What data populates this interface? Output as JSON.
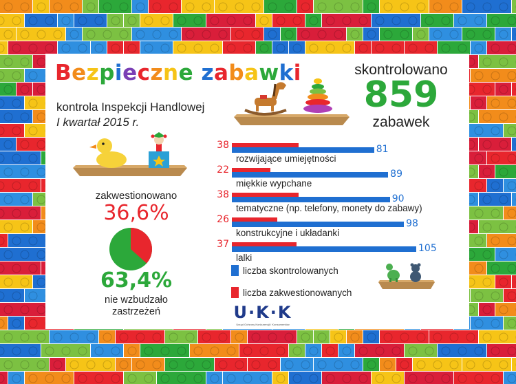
{
  "title_letters": [
    {
      "ch": "B",
      "color": "#e8262d"
    },
    {
      "ch": "e",
      "color": "#f28c1b"
    },
    {
      "ch": "z",
      "color": "#f6c417"
    },
    {
      "ch": "p",
      "color": "#2ca83a"
    },
    {
      "ch": "i",
      "color": "#1f6fd1"
    },
    {
      "ch": "e",
      "color": "#7a3fb5"
    },
    {
      "ch": "c",
      "color": "#e8262d"
    },
    {
      "ch": "z",
      "color": "#f28c1b"
    },
    {
      "ch": "n",
      "color": "#f6c417"
    },
    {
      "ch": "e",
      "color": "#2ca83a"
    },
    {
      "ch": " ",
      "color": "#000000"
    },
    {
      "ch": "z",
      "color": "#1f6fd1"
    },
    {
      "ch": "a",
      "color": "#e8262d"
    },
    {
      "ch": "b",
      "color": "#f28c1b"
    },
    {
      "ch": "a",
      "color": "#f6c417"
    },
    {
      "ch": "w",
      "color": "#2ca83a"
    },
    {
      "ch": "k",
      "color": "#1f6fd1"
    },
    {
      "ch": "i",
      "color": "#e8262d"
    }
  ],
  "subtitle_line1": "kontrola Inspekcji Handlowej",
  "subtitle_line2": "I kwartał 2015 r.",
  "checked": {
    "label_top": "skontrolowano",
    "number": "859",
    "label_bottom": "zabawek"
  },
  "pie": {
    "label_top": "zakwestionowano",
    "percent_red": "36,6%",
    "percent_green": "63,4%",
    "label_bottom_1": "nie wzbudzało",
    "label_bottom_2": "zastrzeżeń",
    "red_fraction": 0.366,
    "colors": {
      "red": "#e8262d",
      "green": "#2ca83a"
    }
  },
  "chart_data": {
    "type": "bar",
    "orientation": "horizontal",
    "categories": [
      "rozwijające umiejętności",
      "miękkie wypchane",
      "tematyczne (np. telefony, monety do zabawy)",
      "konstrukcyjne i układanki",
      "lalki"
    ],
    "series": [
      {
        "name": "liczba skontrolowanych",
        "color": "#1f6fd1",
        "values": [
          81,
          89,
          90,
          98,
          105
        ]
      },
      {
        "name": "liczba zakwestionowanych",
        "color": "#e8262d",
        "values": [
          38,
          22,
          38,
          26,
          37
        ]
      }
    ],
    "xlim": [
      0,
      105
    ],
    "legend_position": "bottom-left"
  },
  "logo": {
    "text": "U·K·K",
    "subtext": "Urząd Ochrony Konkurencji i Konsumentów"
  },
  "colors": {
    "panel_bg": "#ffffff",
    "number_green": "#2ca83a",
    "text": "#222222"
  }
}
